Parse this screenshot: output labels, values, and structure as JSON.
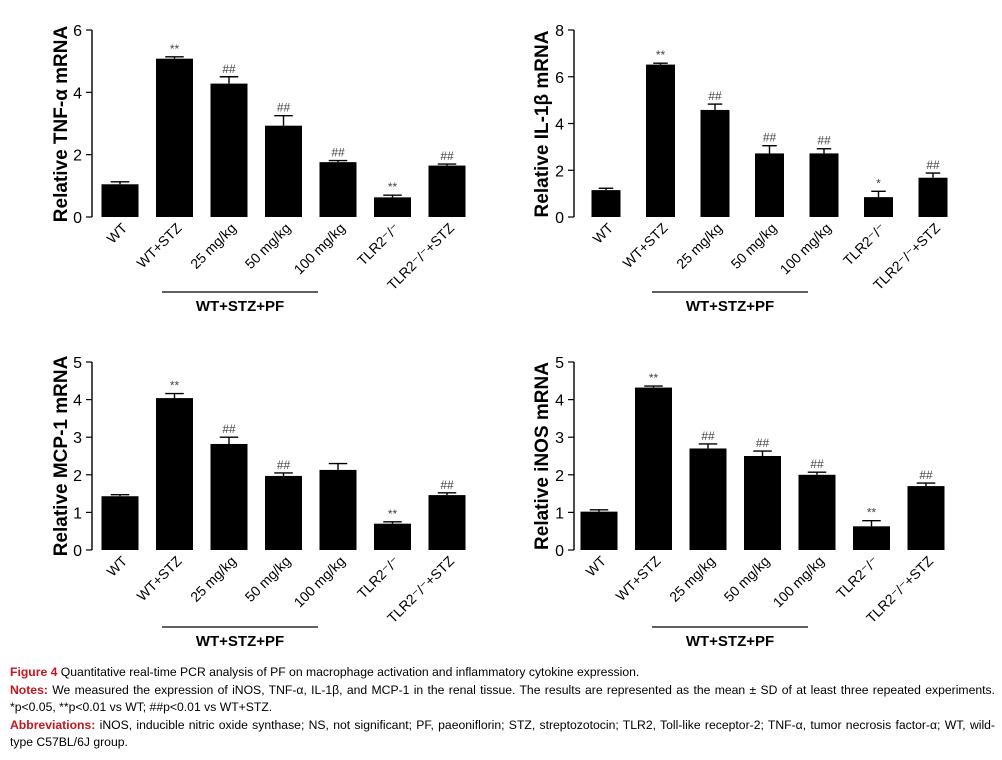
{
  "chart_data": [
    {
      "type": "bar",
      "ylabel": "Relative TNF-α mRNA",
      "ylim": [
        0,
        6
      ],
      "yticks": [
        0,
        2,
        4,
        6
      ],
      "categories": [
        "WT",
        "WT+STZ",
        "25 mg/kg",
        "50 mg/kg",
        "100 mg/kg",
        "TLR2⁻/⁻",
        "TLR2⁻/⁻+STZ"
      ],
      "values": [
        1.05,
        5.08,
        4.28,
        2.93,
        1.76,
        0.63,
        1.65
      ],
      "errors": [
        0.08,
        0.06,
        0.22,
        0.32,
        0.05,
        0.07,
        0.05
      ],
      "annotations": [
        "",
        "**",
        "##",
        "##",
        "##",
        "**",
        "##"
      ],
      "group_label": "WT+STZ+PF"
    },
    {
      "type": "bar",
      "ylabel": "Relative IL-1β mRNA",
      "ylim": [
        0,
        8
      ],
      "yticks": [
        0,
        2,
        4,
        6,
        8
      ],
      "categories": [
        "WT",
        "WT+STZ",
        "25 mg/kg",
        "50 mg/kg",
        "100 mg/kg",
        "TLR2⁻/⁻",
        "TLR2⁻/⁻+STZ"
      ],
      "values": [
        1.15,
        6.52,
        4.58,
        2.72,
        2.72,
        0.85,
        1.68
      ],
      "errors": [
        0.08,
        0.06,
        0.25,
        0.33,
        0.2,
        0.25,
        0.2
      ],
      "annotations": [
        "",
        "**",
        "##",
        "##",
        "##",
        "*",
        "##"
      ],
      "group_label": "WT+STZ+PF"
    },
    {
      "type": "bar",
      "ylabel": "Relative MCP-1 mRNA",
      "ylim": [
        0,
        5
      ],
      "yticks": [
        0,
        1,
        2,
        3,
        4,
        5
      ],
      "categories": [
        "WT",
        "WT+STZ",
        "25 mg/kg",
        "50 mg/kg",
        "100 mg/kg",
        "TLR2⁻/⁻",
        "TLR2⁻/⁻+STZ"
      ],
      "values": [
        1.43,
        4.04,
        2.82,
        1.97,
        2.13,
        0.7,
        1.46
      ],
      "errors": [
        0.04,
        0.12,
        0.18,
        0.08,
        0.17,
        0.05,
        0.06
      ],
      "annotations": [
        "",
        "**",
        "##",
        "##",
        "",
        "**",
        "##"
      ],
      "group_label": "WT+STZ+PF"
    },
    {
      "type": "bar",
      "ylabel": "Relative iNOS mRNA",
      "ylim": [
        0,
        5
      ],
      "yticks": [
        0,
        1,
        2,
        3,
        4,
        5
      ],
      "categories": [
        "WT",
        "WT+STZ",
        "25 mg/kg",
        "50 mg/kg",
        "100 mg/kg",
        "TLR2⁻/⁻",
        "TLR2⁻/⁻+STZ"
      ],
      "values": [
        1.02,
        4.32,
        2.7,
        2.5,
        2.0,
        0.63,
        1.7
      ],
      "errors": [
        0.05,
        0.04,
        0.12,
        0.13,
        0.07,
        0.15,
        0.08
      ],
      "annotations": [
        "",
        "**",
        "##",
        "##",
        "##",
        "**",
        "##"
      ],
      "group_label": "WT+STZ+PF"
    }
  ],
  "caption": {
    "title_label": "Figure 4",
    "title_text": "Quantitative real-time PCR analysis of PF on macrophage activation and inflammatory cytokine expression.",
    "notes_label": "Notes:",
    "notes_text": "We measured the expression of iNOS, TNF-α, IL-1β, and MCP-1 in the renal tissue. The results are represented as the mean ± SD of at least three repeated experiments. *p<0.05, **p<0.01 vs WT; ##p<0.01 vs WT+STZ.",
    "abbr_label": "Abbreviations:",
    "abbr_text": "iNOS, inducible nitric oxide synthase; NS, not significant; PF, paeoniflorin; STZ, streptozotocin; TLR2, Toll-like receptor-2; TNF-α, tumor necrosis factor-α; WT, wild-type C57BL/6J group."
  }
}
